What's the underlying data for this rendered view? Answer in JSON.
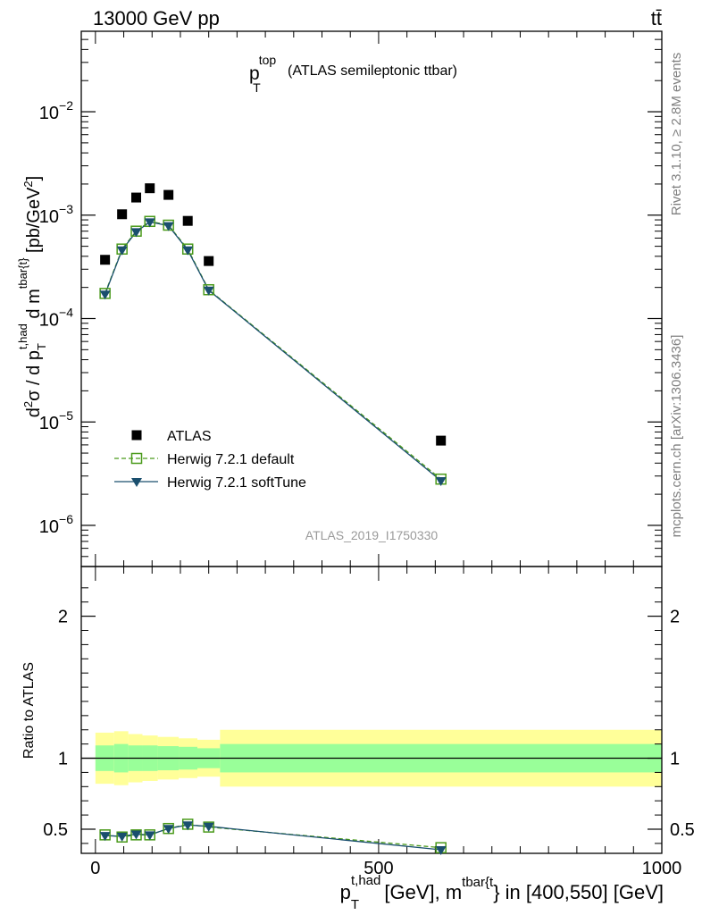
{
  "header": {
    "energy_label": "13000 GeV pp",
    "process_label": "tt̄"
  },
  "side": {
    "rivet_label": "Rivet 3.1.10, ≥ 2.8M events",
    "source_label": "mcplots.cern.ch [arXiv:1306.3436]"
  },
  "colors": {
    "data": "#000000",
    "herwig_default": "#4a9a1a",
    "herwig_softtune": "#1a4f6e",
    "band_inner": "#99ff99",
    "band_outer": "#ffff99"
  },
  "chart_data": [
    {
      "type": "scatter",
      "title_main": "p",
      "title_sup": "top",
      "title_sub": "T",
      "title_rest": "(ATLAS semileptonic ttbar)",
      "analysis_tag": "ATLAS_2019_I1750330",
      "ylabel": "d²σ / d p_T^{t,had} d m^{tbar{t}} [pb/GeV²]",
      "yscale": "log",
      "ylim": [
        4e-07,
        0.06
      ],
      "xlim": [
        -25,
        1000
      ],
      "y_ticks": [
        {
          "value": 1e-06,
          "base": "10",
          "exp": "−6"
        },
        {
          "value": 1e-05,
          "base": "10",
          "exp": "−5"
        },
        {
          "value": 0.0001,
          "base": "10",
          "exp": "−4"
        },
        {
          "value": 0.001,
          "base": "10",
          "exp": "−3"
        },
        {
          "value": 0.01,
          "base": "10",
          "exp": "−2"
        }
      ],
      "legend_position": "lower-left",
      "series": [
        {
          "name": "ATLAS",
          "key": "atlas",
          "marker": "square-filled",
          "x": [
            17,
            47,
            72,
            96,
            129,
            163,
            200,
            610
          ],
          "y": [
            0.00037,
            0.00102,
            0.00148,
            0.00182,
            0.00157,
            0.00088,
            0.00036,
            6.6e-06
          ]
        },
        {
          "name": "Herwig 7.2.1 default",
          "key": "herwig_default",
          "marker": "square-open",
          "line": "dashed",
          "x": [
            17,
            47,
            72,
            96,
            129,
            163,
            200,
            610
          ],
          "y": [
            0.000175,
            0.00047,
            0.0007,
            0.00087,
            0.0008,
            0.00047,
            0.00019,
            2.8e-06
          ]
        },
        {
          "name": "Herwig 7.2.1 softTune",
          "key": "herwig_softtune",
          "marker": "triangle-down",
          "line": "solid",
          "x": [
            17,
            47,
            72,
            96,
            129,
            163,
            200,
            610
          ],
          "y": [
            0.000172,
            0.00046,
            0.00069,
            0.00086,
            0.00079,
            0.00046,
            0.000188,
            2.7e-06
          ]
        }
      ]
    },
    {
      "type": "line",
      "ylabel": "Ratio to ATLAS",
      "xlabel_main": "p",
      "xlabel_sub": "T",
      "xlabel_sup": "t,had",
      "xlabel_mid": "[GeV], m",
      "xlabel_sup2": "tbar{t",
      "xlabel_end": "} in [400,550] [GeV]",
      "ylim": [
        0.33,
        2.35
      ],
      "xlim": [
        -25,
        1000
      ],
      "y_ticks": [
        0.5,
        1,
        2
      ],
      "y_tick_labels": [
        "0.5",
        "1",
        "2"
      ],
      "x_ticks": [
        0,
        500,
        1000
      ],
      "x_tick_labels": [
        "0",
        "500",
        "1000"
      ],
      "bands": {
        "edges": [
          0,
          33,
          58,
          83,
          110,
          147,
          180,
          220,
          1000
        ],
        "inner_low": [
          0.91,
          0.9,
          0.91,
          0.91,
          0.915,
          0.92,
          0.93,
          0.9
        ],
        "inner_high": [
          1.09,
          1.1,
          1.09,
          1.09,
          1.085,
          1.08,
          1.07,
          1.1
        ],
        "outer_low": [
          0.82,
          0.81,
          0.83,
          0.84,
          0.85,
          0.86,
          0.87,
          0.8
        ],
        "outer_high": [
          1.18,
          1.19,
          1.17,
          1.16,
          1.15,
          1.14,
          1.13,
          1.2
        ]
      },
      "series": [
        {
          "name": "Herwig 7.2.1 default",
          "key": "herwig_default",
          "x": [
            17,
            47,
            72,
            96,
            129,
            163,
            200,
            610
          ],
          "y": [
            0.46,
            0.445,
            0.46,
            0.46,
            0.505,
            0.535,
            0.515,
            0.37
          ]
        },
        {
          "name": "Herwig 7.2.1 softTune",
          "key": "herwig_softtune",
          "x": [
            17,
            47,
            72,
            96,
            129,
            163,
            200,
            610
          ],
          "y": [
            0.455,
            0.45,
            0.465,
            0.46,
            0.505,
            0.53,
            0.52,
            0.355
          ]
        }
      ]
    }
  ]
}
